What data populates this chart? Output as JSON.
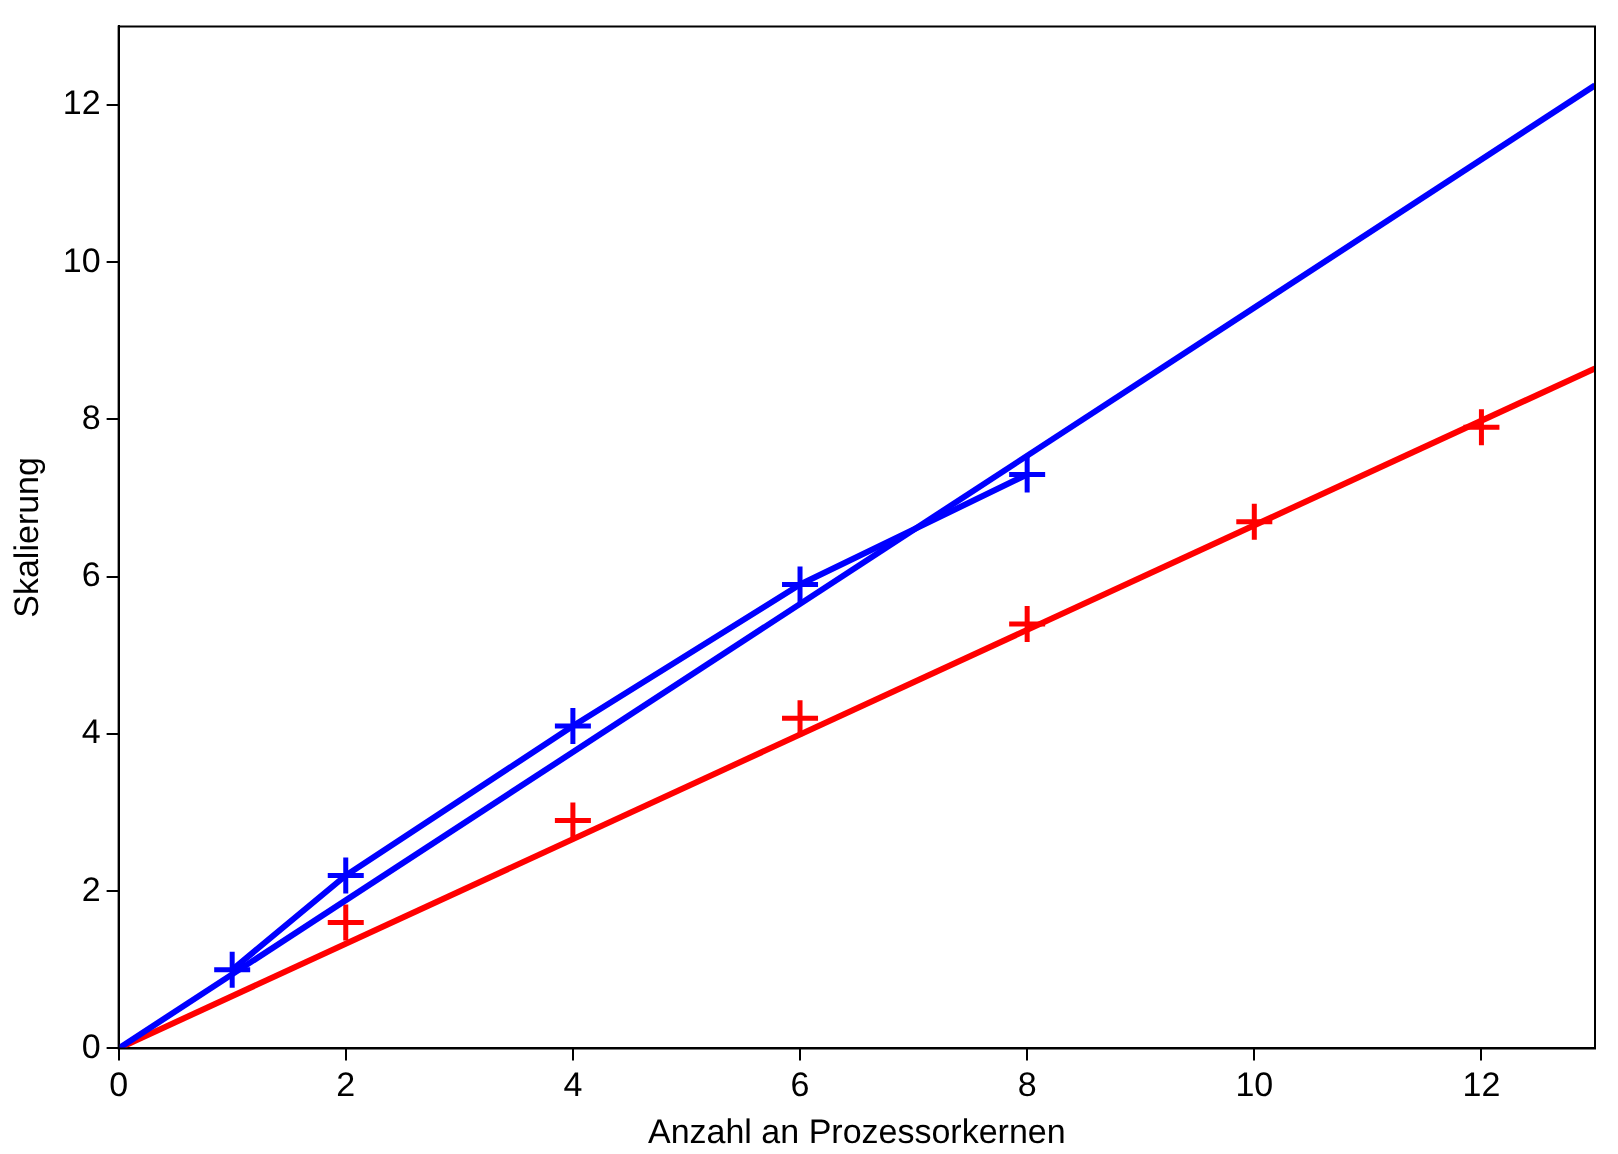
{
  "chart_data": {
    "type": "line",
    "xlabel": "Anzahl an Prozessorkernen",
    "ylabel": "Skalierung",
    "xlim": [
      0,
      13
    ],
    "ylim": [
      0,
      13
    ],
    "xticks": [
      0,
      2,
      4,
      6,
      8,
      10,
      12
    ],
    "yticks": [
      0,
      2,
      4,
      6,
      8,
      10,
      12
    ],
    "grid": false,
    "legend": false,
    "series": [
      {
        "color": "#0000ff",
        "x": [
          1,
          2,
          4,
          6,
          8
        ],
        "values": [
          1,
          2.2,
          4.1,
          5.9,
          7.3
        ],
        "marker": "cross",
        "line_style": "solid"
      },
      {
        "color": "#0000ff",
        "x": [
          0,
          13
        ],
        "values": [
          0,
          12.25
        ],
        "marker": "none",
        "line_style": "solid"
      },
      {
        "type": "scatter",
        "color": "#ff0000",
        "x": [
          2,
          4,
          6,
          8,
          10,
          12
        ],
        "values": [
          1.6,
          2.9,
          4.2,
          5.4,
          6.7,
          7.9
        ],
        "marker": "cross"
      },
      {
        "color": "#ff0000",
        "x": [
          0,
          13
        ],
        "values": [
          0,
          8.65
        ],
        "marker": "none",
        "line_style": "solid"
      }
    ]
  }
}
